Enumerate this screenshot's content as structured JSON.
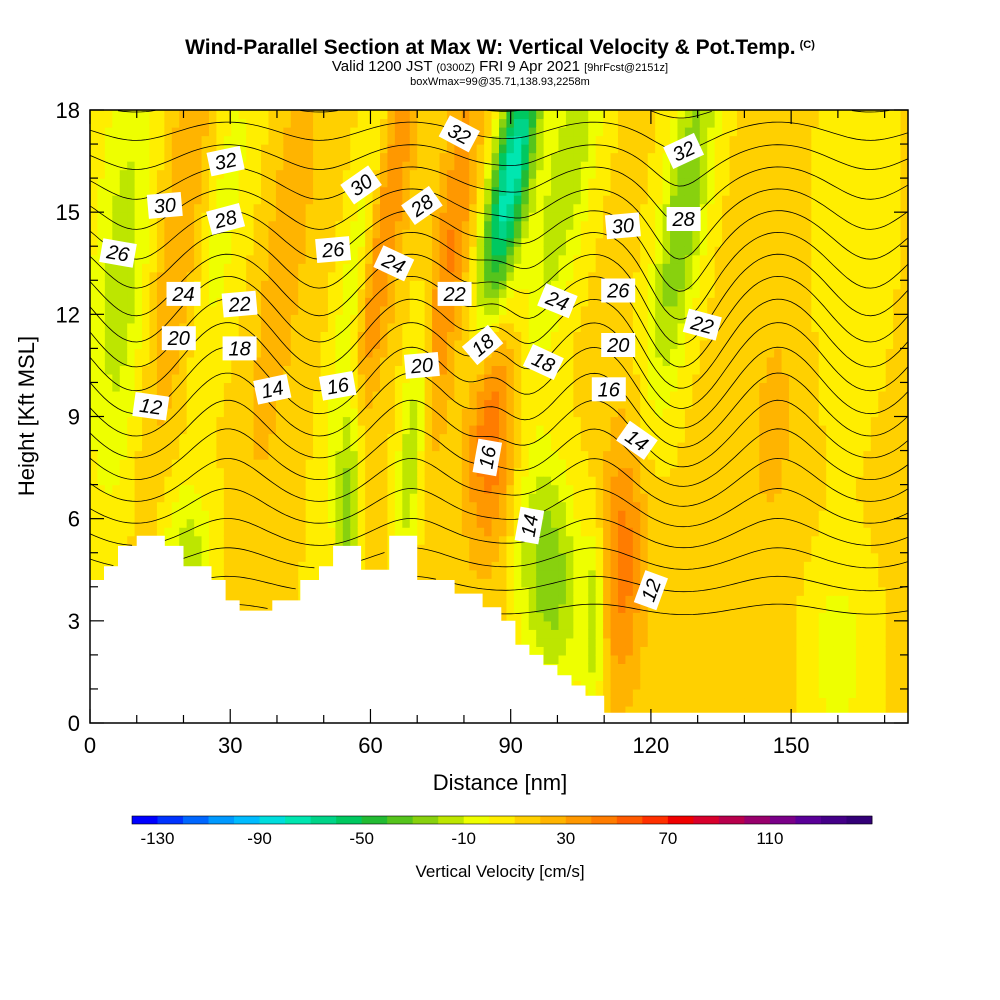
{
  "title": {
    "main": "Wind-Parallel Section at Max W: Vertical Velocity & Pot.Temp.",
    "copyright": "(C)",
    "valid_a": "Valid 1200 JST",
    "valid_utc": "(0300Z)",
    "valid_b": "FRI 9 Apr 2021",
    "forecast": "[9hrFcst@2151z]",
    "box": "boxWmax=99@35.71,138.93,2258m"
  },
  "chart_data": {
    "type": "heatmap",
    "xlabel": "Distance [nm]",
    "ylabel": "Height [Kft MSL]",
    "xlim": [
      0,
      175
    ],
    "ylim": [
      0,
      18
    ],
    "xticks": [
      "0",
      "30",
      "60",
      "90",
      "120",
      "150"
    ],
    "yticks": [
      "0",
      "3",
      "6",
      "9",
      "12",
      "15",
      "18"
    ],
    "colorbar": {
      "title": "Vertical Velocity [cm/s]",
      "tick_labels": [
        "-130",
        "-90",
        "-50",
        "-10",
        "30",
        "70",
        "110"
      ],
      "min": -140,
      "max": 150,
      "step": 10,
      "colors": [
        "#0000ff",
        "#0033ff",
        "#0066ff",
        "#0099ff",
        "#00bbff",
        "#00dddd",
        "#00e6b0",
        "#00d488",
        "#00c860",
        "#22bb33",
        "#55c41c",
        "#88d10e",
        "#bde600",
        "#eeff00",
        "#ffee00",
        "#ffd000",
        "#ffb400",
        "#ff9800",
        "#ff7c00",
        "#ff5a00",
        "#ff3000",
        "#f00000",
        "#d8002c",
        "#b8004c",
        "#98006c",
        "#7a0088",
        "#5a0098",
        "#440088",
        "#330077"
      ]
    },
    "contour_labels": [
      {
        "text": "32",
        "x": 29,
        "y": 16.5,
        "angle": -12
      },
      {
        "text": "30",
        "x": 16,
        "y": 15.2,
        "angle": -5
      },
      {
        "text": "28",
        "x": 29,
        "y": 14.8,
        "angle": -15
      },
      {
        "text": "26",
        "x": 6,
        "y": 13.8,
        "angle": 10
      },
      {
        "text": "24",
        "x": 20,
        "y": 12.6,
        "angle": 0
      },
      {
        "text": "22",
        "x": 32,
        "y": 12.3,
        "angle": -5
      },
      {
        "text": "20",
        "x": 19,
        "y": 11.3,
        "angle": 0
      },
      {
        "text": "18",
        "x": 32,
        "y": 11.0,
        "angle": 0
      },
      {
        "text": "14",
        "x": 39,
        "y": 9.8,
        "angle": -12
      },
      {
        "text": "16",
        "x": 53,
        "y": 9.9,
        "angle": -10
      },
      {
        "text": "12",
        "x": 13,
        "y": 9.3,
        "angle": 8
      },
      {
        "text": "30",
        "x": 58,
        "y": 15.8,
        "angle": -35
      },
      {
        "text": "26",
        "x": 52,
        "y": 13.9,
        "angle": -5
      },
      {
        "text": "24",
        "x": 65,
        "y": 13.5,
        "angle": 25
      },
      {
        "text": "28",
        "x": 71,
        "y": 15.2,
        "angle": -35
      },
      {
        "text": "32",
        "x": 79,
        "y": 17.3,
        "angle": 28
      },
      {
        "text": "22",
        "x": 78,
        "y": 12.6,
        "angle": 0
      },
      {
        "text": "20",
        "x": 71,
        "y": 10.5,
        "angle": -5
      },
      {
        "text": "18",
        "x": 84,
        "y": 11.1,
        "angle": -40
      },
      {
        "text": "18",
        "x": 97,
        "y": 10.6,
        "angle": 25
      },
      {
        "text": "16",
        "x": 85,
        "y": 7.8,
        "angle": -80
      },
      {
        "text": "24",
        "x": 100,
        "y": 12.4,
        "angle": 22
      },
      {
        "text": "26",
        "x": 113,
        "y": 12.7,
        "angle": 0
      },
      {
        "text": "30",
        "x": 114,
        "y": 14.6,
        "angle": -5
      },
      {
        "text": "32",
        "x": 127,
        "y": 16.8,
        "angle": -25
      },
      {
        "text": "28",
        "x": 127,
        "y": 14.8,
        "angle": 0
      },
      {
        "text": "22",
        "x": 131,
        "y": 11.7,
        "angle": 15
      },
      {
        "text": "20",
        "x": 113,
        "y": 11.1,
        "angle": 0
      },
      {
        "text": "16",
        "x": 111,
        "y": 9.8,
        "angle": 0
      },
      {
        "text": "14",
        "x": 117,
        "y": 8.3,
        "angle": 35
      },
      {
        "text": "14",
        "x": 94,
        "y": 5.8,
        "angle": -80
      },
      {
        "text": "12",
        "x": 120,
        "y": 3.9,
        "angle": -70
      }
    ]
  }
}
